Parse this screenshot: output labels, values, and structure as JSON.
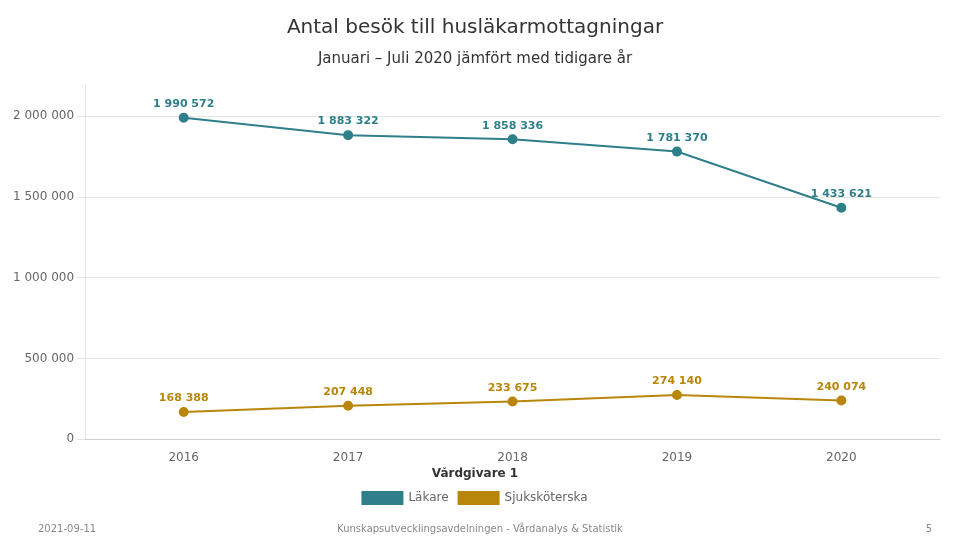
{
  "chart_data": {
    "type": "line",
    "title": "Antal besök till husläkarmottagningar",
    "subtitle": "Januari – Juli 2020 jämfört med tidigare år",
    "x": [
      2016,
      2017,
      2018,
      2019,
      2020
    ],
    "xlim": [
      2015.4,
      2020.6
    ],
    "xticks": [
      2016,
      2017,
      2018,
      2019,
      2020
    ],
    "series": [
      {
        "name": "Läkare",
        "color": "#2e7f8a",
        "marker": "circle",
        "line_style": "solid",
        "values": [
          1990572,
          1883322,
          1858336,
          1781370,
          1433621
        ],
        "value_labels": [
          "1 990 572",
          "1 883 322",
          "1 858 336",
          "1 781 370",
          "1 433 621"
        ]
      },
      {
        "name": "Sjuksköterska",
        "color": "#b8860b",
        "marker": "circle",
        "line_style": "solid",
        "values": [
          168388,
          207448,
          233675,
          274140,
          240074
        ],
        "value_labels": [
          "168 388",
          "207 448",
          "233 675",
          "274 140",
          "240 074"
        ]
      }
    ],
    "ylim": [
      0,
      2200000
    ],
    "yticks": [
      0,
      {
        "value": 500000,
        "label": "500 000"
      },
      {
        "value": 1000000,
        "label": "1 000 000"
      },
      {
        "value": 1500000,
        "label": "1 500 000"
      },
      {
        "value": 2000000,
        "label": "2 000 000"
      }
    ],
    "grid": true,
    "legend": "bottom",
    "legend_title": "Vårdgivare 1",
    "data_labels": true,
    "footer_left": "2021-09-11",
    "footer_center": "Kunskapsutvecklingsavdelningen - Vårdanalys & Statistik",
    "footer_right": "5"
  }
}
